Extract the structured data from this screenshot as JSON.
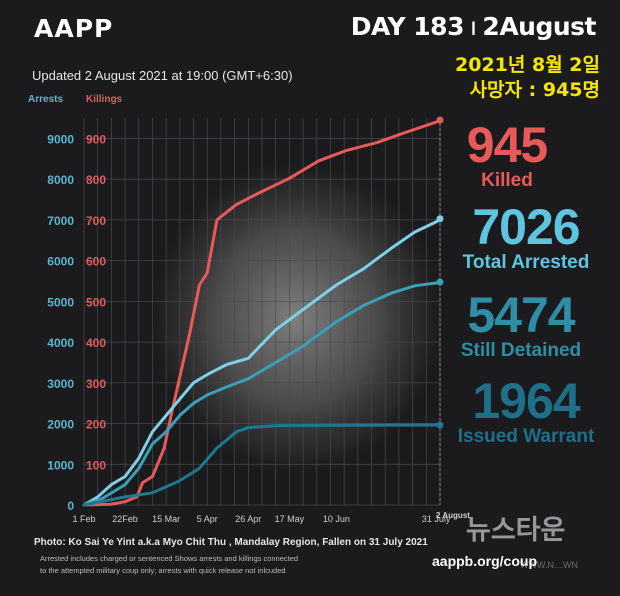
{
  "header": {
    "brand": "AAPP",
    "day": "DAY 183",
    "day_sep": "ı",
    "date": "2August",
    "updated": "Updated 2 August 2021 at 19:00 (GMT+6:30)"
  },
  "korean": {
    "line1": "2021년 8월 2일",
    "line2": "사망자 : 945명"
  },
  "legend": {
    "arrests": "Arrests",
    "killings": "Killings"
  },
  "stats": [
    {
      "value": "945",
      "label": "Killed",
      "color": "#e85a5a"
    },
    {
      "value": "7026",
      "label": "Total Arrested",
      "color": "#5fc4e0"
    },
    {
      "value": "5474",
      "label": "Still Detained",
      "color": "#2f8ea6"
    },
    {
      "value": "1964",
      "label": "Issued Warrant",
      "color": "#1f6f88"
    }
  ],
  "footer": {
    "photo": "Photo: Ko Sai Ye Yint a.k.a Myo Chit Thu , Mandalay Region, Fallen on 31 July 2021",
    "note_line1": "Arrested includes charged or sentenced Shows arrests and killings connected",
    "note_line2": "to the attempted military coup only; arrests with quick release not inlcuded",
    "url": "aappb.org/coup",
    "watermark": "뉴스타운",
    "watermark_small": "WWW.N…WN"
  },
  "chart_data": {
    "type": "line",
    "x_ticks": [
      "1 Feb",
      "22Feb",
      "15 Mar",
      "5 Apr",
      "26 Apr",
      "17 May",
      "10 Jun",
      "31 July",
      "2 August"
    ],
    "x_tick_dates": [
      "2021-02-01",
      "2021-02-22",
      "2021-03-15",
      "2021-04-05",
      "2021-04-26",
      "2021-05-17",
      "2021-06-10",
      "2021-07-31",
      "2021-08-02"
    ],
    "x_range": [
      "2021-02-01",
      "2021-08-02"
    ],
    "y_left": {
      "label": "Arrests",
      "ticks": [
        0,
        1000,
        2000,
        3000,
        4000,
        5000,
        6000,
        7000,
        8000,
        9000
      ],
      "range": [
        0,
        9500
      ],
      "color": "#5ab6cf"
    },
    "y_right": {
      "label": "Killings",
      "ticks": [
        0,
        100,
        200,
        300,
        400,
        500,
        600,
        700,
        800,
        900
      ],
      "range": [
        0,
        950
      ],
      "color": "#e05c5c"
    },
    "grid": true,
    "series": [
      {
        "name": "Killed",
        "axis": "right",
        "color": "#e85a5a",
        "points": [
          [
            "2021-02-01",
            0
          ],
          [
            "2021-02-15",
            2
          ],
          [
            "2021-02-22",
            8
          ],
          [
            "2021-02-28",
            20
          ],
          [
            "2021-03-03",
            55
          ],
          [
            "2021-03-08",
            70
          ],
          [
            "2021-03-14",
            140
          ],
          [
            "2021-03-18",
            230
          ],
          [
            "2021-03-27",
            420
          ],
          [
            "2021-04-01",
            540
          ],
          [
            "2021-04-05",
            570
          ],
          [
            "2021-04-10",
            700
          ],
          [
            "2021-04-20",
            738
          ],
          [
            "2021-05-01",
            765
          ],
          [
            "2021-05-17",
            802
          ],
          [
            "2021-06-01",
            845
          ],
          [
            "2021-06-15",
            870
          ],
          [
            "2021-07-01",
            890
          ],
          [
            "2021-07-15",
            914
          ],
          [
            "2021-07-31",
            940
          ],
          [
            "2021-08-02",
            945
          ]
        ]
      },
      {
        "name": "Total Arrested",
        "axis": "left",
        "color": "#7fd0e6",
        "points": [
          [
            "2021-02-01",
            0
          ],
          [
            "2021-02-08",
            200
          ],
          [
            "2021-02-15",
            500
          ],
          [
            "2021-02-22",
            700
          ],
          [
            "2021-03-01",
            1150
          ],
          [
            "2021-03-08",
            1800
          ],
          [
            "2021-03-15",
            2200
          ],
          [
            "2021-03-22",
            2600
          ],
          [
            "2021-03-29",
            3000
          ],
          [
            "2021-04-05",
            3200
          ],
          [
            "2021-04-15",
            3450
          ],
          [
            "2021-04-26",
            3600
          ],
          [
            "2021-05-10",
            4300
          ],
          [
            "2021-05-24",
            4800
          ],
          [
            "2021-06-10",
            5400
          ],
          [
            "2021-06-24",
            5800
          ],
          [
            "2021-07-08",
            6300
          ],
          [
            "2021-07-20",
            6700
          ],
          [
            "2021-07-31",
            6950
          ],
          [
            "2021-08-02",
            7026
          ]
        ]
      },
      {
        "name": "Still Detained",
        "axis": "left",
        "color": "#3a9fb8",
        "points": [
          [
            "2021-02-01",
            0
          ],
          [
            "2021-02-10",
            150
          ],
          [
            "2021-02-22",
            500
          ],
          [
            "2021-03-01",
            900
          ],
          [
            "2021-03-08",
            1500
          ],
          [
            "2021-03-15",
            1800
          ],
          [
            "2021-03-22",
            2200
          ],
          [
            "2021-03-29",
            2500
          ],
          [
            "2021-04-05",
            2700
          ],
          [
            "2021-04-15",
            2900
          ],
          [
            "2021-04-26",
            3100
          ],
          [
            "2021-05-10",
            3500
          ],
          [
            "2021-05-24",
            3900
          ],
          [
            "2021-06-10",
            4500
          ],
          [
            "2021-06-24",
            4900
          ],
          [
            "2021-07-08",
            5200
          ],
          [
            "2021-07-20",
            5380
          ],
          [
            "2021-07-31",
            5450
          ],
          [
            "2021-08-02",
            5474
          ]
        ]
      },
      {
        "name": "Issued Warrant",
        "axis": "left",
        "color": "#1f7892",
        "points": [
          [
            "2021-02-01",
            0
          ],
          [
            "2021-02-22",
            200
          ],
          [
            "2021-03-08",
            300
          ],
          [
            "2021-03-15",
            450
          ],
          [
            "2021-03-22",
            600
          ],
          [
            "2021-04-01",
            900
          ],
          [
            "2021-04-10",
            1400
          ],
          [
            "2021-04-20",
            1800
          ],
          [
            "2021-04-26",
            1900
          ],
          [
            "2021-05-10",
            1950
          ],
          [
            "2021-06-10",
            1960
          ],
          [
            "2021-07-31",
            1964
          ],
          [
            "2021-08-02",
            1964
          ]
        ]
      }
    ]
  }
}
